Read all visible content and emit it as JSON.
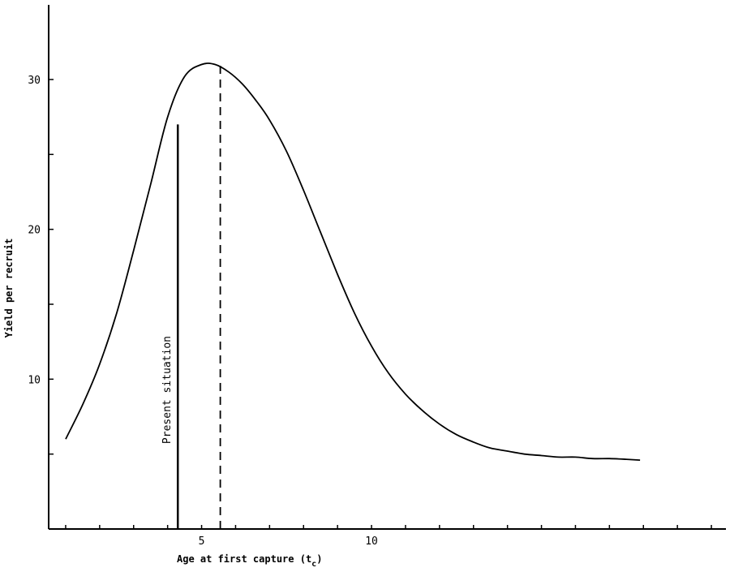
{
  "chart_data": {
    "type": "line",
    "title": "",
    "xlabel": "Age at first capture (t",
    "xlabel_subscript": "c",
    "xlabel_suffix": ")",
    "ylabel": "Yield per recruit",
    "xlim": [
      0.5,
      20.5
    ],
    "ylim": [
      0,
      35
    ],
    "x_ticks": [
      1,
      2,
      3,
      4,
      5,
      6,
      7,
      8,
      9,
      10,
      11,
      12,
      13,
      14,
      15,
      16,
      17,
      18,
      19,
      20
    ],
    "x_tick_labels": [
      {
        "value": 5,
        "label": "5"
      },
      {
        "value": 10,
        "label": "10"
      }
    ],
    "y_ticks": [
      5,
      10,
      15,
      20,
      25,
      30
    ],
    "y_tick_labels": [
      {
        "value": 10,
        "label": "10"
      },
      {
        "value": 20,
        "label": "20"
      },
      {
        "value": 30,
        "label": "30"
      }
    ],
    "grid": false,
    "series": [
      {
        "x": [
          1.0,
          1.5,
          2.0,
          2.5,
          3.0,
          3.5,
          4.0,
          4.5,
          5.0,
          5.4,
          5.8,
          6.2,
          6.6,
          7.0,
          7.5,
          8.0,
          8.5,
          9.0,
          9.5,
          10.0,
          10.5,
          11.0,
          11.5,
          12.0,
          12.5,
          13.0,
          13.5,
          14.0,
          14.5,
          15.0,
          15.5,
          16.0,
          16.5,
          17.0,
          17.5,
          17.9
        ],
        "y": [
          6.0,
          8.3,
          11.0,
          14.4,
          18.6,
          23.0,
          27.5,
          30.2,
          31.0,
          31.0,
          30.5,
          29.7,
          28.6,
          27.3,
          25.2,
          22.6,
          19.8,
          17.0,
          14.4,
          12.2,
          10.4,
          9.0,
          7.9,
          7.0,
          6.3,
          5.8,
          5.4,
          5.2,
          5.0,
          4.9,
          4.8,
          4.8,
          4.7,
          4.7,
          4.65,
          4.6
        ]
      }
    ],
    "annotations": [
      {
        "type": "vline",
        "style": "solid",
        "x": 4.3,
        "y_top": 27.0,
        "label": "Present situation"
      },
      {
        "type": "vline",
        "style": "dashed",
        "x": 5.55,
        "y_top": 31.0
      }
    ]
  }
}
